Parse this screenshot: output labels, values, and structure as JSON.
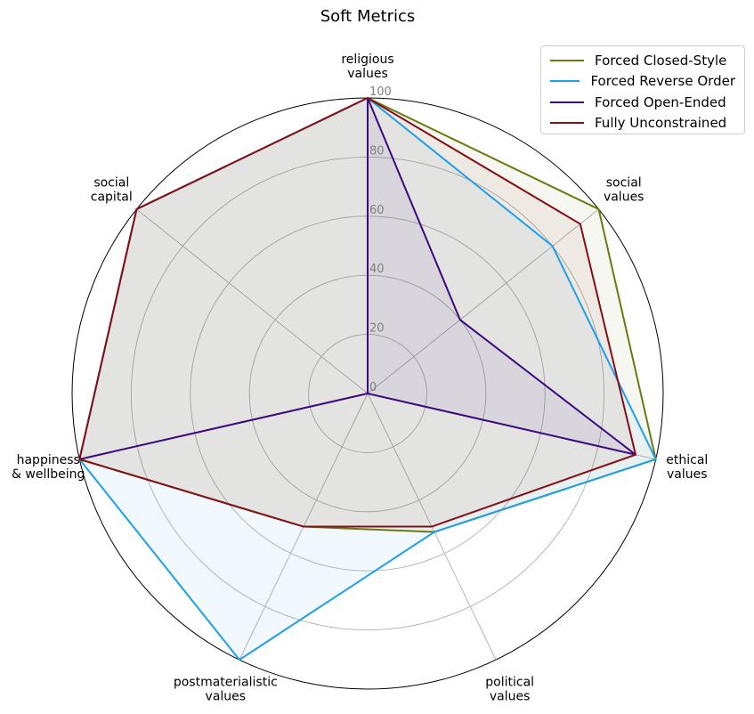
{
  "chart_data": {
    "type": "radar",
    "title": "Soft Metrics",
    "axes": [
      [
        "religious",
        "values"
      ],
      [
        "social",
        "values"
      ],
      [
        "ethical",
        "values"
      ],
      [
        "political",
        "values"
      ],
      [
        "postmaterialistic",
        "values"
      ],
      [
        "happiness",
        "& wellbeing"
      ],
      [
        "social",
        "capital"
      ]
    ],
    "rlim": [
      0,
      100
    ],
    "rticks": [
      0,
      20,
      40,
      60,
      80,
      100
    ],
    "rtick_labels": [
      "0",
      "20",
      "40",
      "60",
      "80",
      "100"
    ],
    "grid": true,
    "legend_placement": "top-right",
    "series": [
      {
        "name": "Forced Closed-Style",
        "color": "#6b7a10",
        "values": [
          100,
          100,
          100,
          52,
          50,
          100,
          100
        ]
      },
      {
        "name": "Forced Reverse Order",
        "color": "#1ea0e8",
        "values": [
          100,
          80,
          100,
          52,
          100,
          100,
          100
        ]
      },
      {
        "name": "Forced Open-Ended",
        "color": "#3b0a80",
        "values": [
          100,
          40,
          93,
          0,
          0,
          100,
          0
        ]
      },
      {
        "name": "Fully Unconstrained",
        "color": "#850f18",
        "values": [
          100,
          92,
          93,
          50,
          50,
          100,
          100
        ]
      }
    ]
  }
}
